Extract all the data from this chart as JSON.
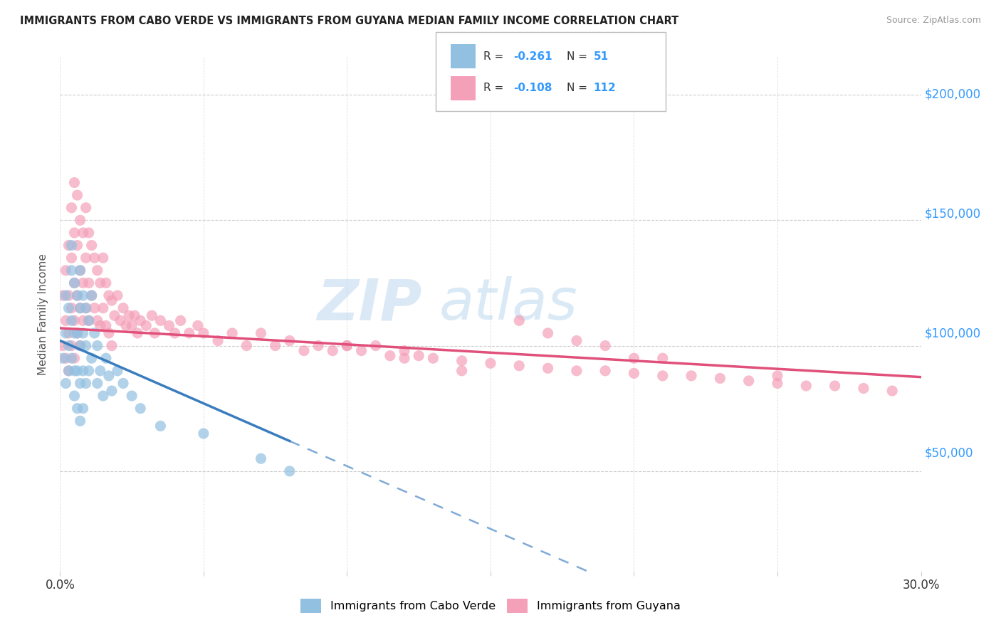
{
  "title": "IMMIGRANTS FROM CABO VERDE VS IMMIGRANTS FROM GUYANA MEDIAN FAMILY INCOME CORRELATION CHART",
  "source": "Source: ZipAtlas.com",
  "ylabel": "Median Family Income",
  "yticks": [
    0,
    50000,
    100000,
    150000,
    200000
  ],
  "ytick_labels": [
    "",
    "$50,000",
    "$100,000",
    "$150,000",
    "$200,000"
  ],
  "xmin": 0.0,
  "xmax": 0.3,
  "ymin": 10000,
  "ymax": 215000,
  "legend_label_blue": "Immigrants from Cabo Verde",
  "legend_label_pink": "Immigrants from Guyana",
  "color_blue": "#92c0e0",
  "color_pink": "#f4a0b8",
  "color_blue_line": "#3a7dbf",
  "color_pink_line": "#e0507a",
  "watermark_zip": "ZIP",
  "watermark_atlas": "atlas",
  "cabo_verde_x": [
    0.001,
    0.002,
    0.002,
    0.002,
    0.003,
    0.003,
    0.003,
    0.004,
    0.004,
    0.004,
    0.004,
    0.005,
    0.005,
    0.005,
    0.005,
    0.006,
    0.006,
    0.006,
    0.006,
    0.007,
    0.007,
    0.007,
    0.007,
    0.007,
    0.008,
    0.008,
    0.008,
    0.008,
    0.009,
    0.009,
    0.009,
    0.01,
    0.01,
    0.011,
    0.011,
    0.012,
    0.013,
    0.013,
    0.014,
    0.015,
    0.016,
    0.017,
    0.018,
    0.02,
    0.022,
    0.025,
    0.028,
    0.035,
    0.05,
    0.07,
    0.08
  ],
  "cabo_verde_y": [
    95000,
    105000,
    85000,
    120000,
    100000,
    115000,
    90000,
    130000,
    110000,
    95000,
    140000,
    125000,
    105000,
    90000,
    80000,
    120000,
    105000,
    90000,
    75000,
    130000,
    115000,
    100000,
    85000,
    70000,
    120000,
    105000,
    90000,
    75000,
    115000,
    100000,
    85000,
    110000,
    90000,
    120000,
    95000,
    105000,
    100000,
    85000,
    90000,
    80000,
    95000,
    88000,
    82000,
    90000,
    85000,
    80000,
    75000,
    68000,
    65000,
    55000,
    50000
  ],
  "guyana_x": [
    0.001,
    0.001,
    0.002,
    0.002,
    0.002,
    0.003,
    0.003,
    0.003,
    0.003,
    0.004,
    0.004,
    0.004,
    0.004,
    0.005,
    0.005,
    0.005,
    0.005,
    0.005,
    0.006,
    0.006,
    0.006,
    0.006,
    0.007,
    0.007,
    0.007,
    0.007,
    0.008,
    0.008,
    0.008,
    0.009,
    0.009,
    0.009,
    0.01,
    0.01,
    0.01,
    0.011,
    0.011,
    0.012,
    0.012,
    0.013,
    0.013,
    0.014,
    0.014,
    0.015,
    0.015,
    0.016,
    0.016,
    0.017,
    0.017,
    0.018,
    0.018,
    0.019,
    0.02,
    0.021,
    0.022,
    0.023,
    0.024,
    0.025,
    0.026,
    0.027,
    0.028,
    0.03,
    0.032,
    0.033,
    0.035,
    0.038,
    0.04,
    0.042,
    0.045,
    0.048,
    0.05,
    0.055,
    0.06,
    0.065,
    0.07,
    0.075,
    0.08,
    0.085,
    0.09,
    0.095,
    0.1,
    0.105,
    0.11,
    0.115,
    0.12,
    0.125,
    0.13,
    0.14,
    0.15,
    0.16,
    0.17,
    0.18,
    0.19,
    0.2,
    0.21,
    0.22,
    0.23,
    0.24,
    0.25,
    0.26,
    0.27,
    0.28,
    0.29,
    0.17,
    0.19,
    0.2,
    0.21,
    0.16,
    0.18,
    0.25,
    0.1,
    0.12,
    0.14
  ],
  "guyana_y": [
    120000,
    100000,
    130000,
    110000,
    95000,
    140000,
    120000,
    105000,
    90000,
    155000,
    135000,
    115000,
    100000,
    165000,
    145000,
    125000,
    110000,
    95000,
    160000,
    140000,
    120000,
    105000,
    150000,
    130000,
    115000,
    100000,
    145000,
    125000,
    110000,
    155000,
    135000,
    115000,
    145000,
    125000,
    110000,
    140000,
    120000,
    135000,
    115000,
    130000,
    110000,
    125000,
    108000,
    135000,
    115000,
    125000,
    108000,
    120000,
    105000,
    118000,
    100000,
    112000,
    120000,
    110000,
    115000,
    108000,
    112000,
    108000,
    112000,
    105000,
    110000,
    108000,
    112000,
    105000,
    110000,
    108000,
    105000,
    110000,
    105000,
    108000,
    105000,
    102000,
    105000,
    100000,
    105000,
    100000,
    102000,
    98000,
    100000,
    98000,
    100000,
    98000,
    100000,
    96000,
    98000,
    96000,
    95000,
    94000,
    93000,
    92000,
    91000,
    90000,
    90000,
    89000,
    88000,
    88000,
    87000,
    86000,
    85000,
    84000,
    84000,
    83000,
    82000,
    105000,
    100000,
    95000,
    95000,
    110000,
    102000,
    88000,
    100000,
    95000,
    90000
  ]
}
